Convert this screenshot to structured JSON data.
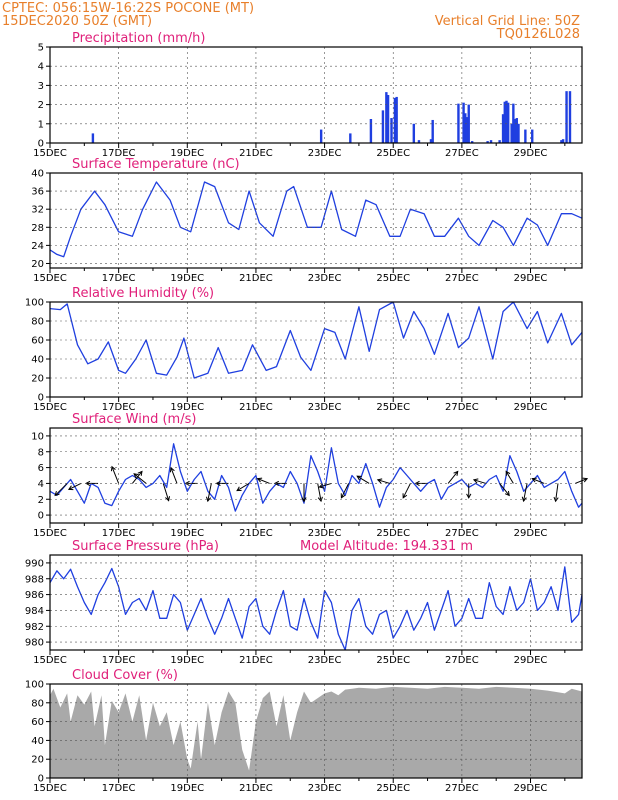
{
  "header": {
    "line1": "CPTEC:   056:15W-16:22S   POCONE (MT)",
    "line2": "15DEC2020 50Z (GMT)",
    "right1": "Vertical Grid Line: 50Z",
    "right2": "TQ0126L028"
  },
  "colors": {
    "header": "#e87f2a",
    "panel_title": "#e0207a",
    "series": "#1f3fe0",
    "cloud_fill": "#a9a9a9",
    "grid": "#555555",
    "arrow": "#000000"
  },
  "chart_data": [
    {
      "id": "precip",
      "type": "bar",
      "title": "Precipitation (mm/h)",
      "ylim": [
        0,
        5
      ],
      "yticks": [
        0,
        1,
        2,
        3,
        4,
        5
      ],
      "xlim": [
        0,
        15.5
      ],
      "xticks": [
        0,
        2,
        4,
        6,
        8,
        10,
        12,
        14
      ],
      "xticklabels": [
        "15DEC",
        "17DEC",
        "19DEC",
        "21DEC",
        "23DEC",
        "25DEC",
        "27DEC",
        "29DEC"
      ],
      "x": [
        1.25,
        7.9,
        8.75,
        9.35,
        9.7,
        9.8,
        9.85,
        9.95,
        10.05,
        10.1,
        10.6,
        10.75,
        11.1,
        11.15,
        11.9,
        12.05,
        12.1,
        12.15,
        12.2,
        12.3,
        12.75,
        12.85,
        13.1,
        13.2,
        13.25,
        13.3,
        13.35,
        13.45,
        13.5,
        13.55,
        13.6,
        13.65,
        13.85,
        14.05,
        14.9,
        14.95,
        15.05,
        15.15
      ],
      "values": [
        0.5,
        0.7,
        0.5,
        1.25,
        1.7,
        2.65,
        2.5,
        1.3,
        2.35,
        2.4,
        1.0,
        0.15,
        0.2,
        1.2,
        2.05,
        2.1,
        1.55,
        1.35,
        2.0,
        0.1,
        0.1,
        0.15,
        0.15,
        1.5,
        2.15,
        2.2,
        2.1,
        1.0,
        2.05,
        1.25,
        1.3,
        1.0,
        0.7,
        0.7,
        0.15,
        0.2,
        2.7,
        2.7
      ]
    },
    {
      "id": "temp",
      "type": "line",
      "title": "Surface Temperature (nC)",
      "ylim": [
        19,
        40
      ],
      "yticks": [
        20,
        24,
        28,
        32,
        36,
        40
      ],
      "xlim": [
        0,
        15.5
      ],
      "xticks": [
        0,
        2,
        4,
        6,
        8,
        10,
        12,
        14
      ],
      "xticklabels": [
        "15DEC",
        "17DEC",
        "19DEC",
        "21DEC",
        "23DEC",
        "25DEC",
        "27DEC",
        "29DEC"
      ],
      "x": [
        0,
        0.2,
        0.4,
        0.6,
        0.9,
        1.3,
        1.6,
        2.0,
        2.4,
        2.7,
        3.1,
        3.5,
        3.8,
        4.1,
        4.5,
        4.8,
        5.2,
        5.5,
        5.8,
        6.1,
        6.5,
        6.9,
        7.1,
        7.5,
        7.9,
        8.2,
        8.5,
        8.9,
        9.2,
        9.5,
        9.9,
        10.2,
        10.5,
        10.9,
        11.2,
        11.5,
        11.9,
        12.2,
        12.5,
        12.9,
        13.2,
        13.5,
        13.9,
        14.2,
        14.5,
        14.9,
        15.2,
        15.5
      ],
      "values": [
        23,
        22,
        21.5,
        26,
        32,
        36,
        33,
        27,
        26,
        32,
        38,
        34,
        28,
        27,
        38,
        37,
        29,
        27.5,
        36,
        29,
        26,
        36,
        37,
        28,
        28,
        36,
        27.5,
        26,
        34,
        33,
        26,
        26,
        32,
        31,
        26,
        26,
        30,
        26,
        24,
        29.5,
        28,
        24,
        30,
        28.5,
        24,
        31,
        31,
        30
      ]
    },
    {
      "id": "rh",
      "type": "line",
      "title": "Relative Humidity (%)",
      "ylim": [
        0,
        100
      ],
      "yticks": [
        0,
        20,
        40,
        60,
        80,
        100
      ],
      "xlim": [
        0,
        15.5
      ],
      "xticks": [
        0,
        2,
        4,
        6,
        8,
        10,
        12,
        14
      ],
      "xticklabels": [
        "15DEC",
        "17DEC",
        "19DEC",
        "21DEC",
        "23DEC",
        "25DEC",
        "27DEC",
        "29DEC"
      ],
      "x": [
        0,
        0.3,
        0.5,
        0.8,
        1.1,
        1.4,
        1.7,
        2.0,
        2.2,
        2.5,
        2.8,
        3.1,
        3.4,
        3.7,
        3.9,
        4.2,
        4.6,
        4.9,
        5.2,
        5.6,
        5.9,
        6.3,
        6.6,
        7.0,
        7.3,
        7.6,
        8.0,
        8.3,
        8.6,
        9.0,
        9.3,
        9.6,
        10.0,
        10.3,
        10.6,
        10.9,
        11.2,
        11.6,
        11.9,
        12.2,
        12.5,
        12.9,
        13.2,
        13.5,
        13.9,
        14.2,
        14.5,
        14.9,
        15.2,
        15.5
      ],
      "values": [
        93,
        92,
        98,
        55,
        35,
        40,
        58,
        28,
        25,
        40,
        60,
        25,
        23,
        42,
        62,
        20,
        25,
        52,
        25,
        28,
        55,
        28,
        32,
        70,
        42,
        28,
        72,
        68,
        40,
        95,
        48,
        92,
        100,
        62,
        90,
        72,
        45,
        88,
        52,
        62,
        95,
        40,
        90,
        100,
        72,
        90,
        57,
        88,
        55,
        68
      ]
    },
    {
      "id": "wind",
      "type": "line",
      "title": "Surface Wind (m/s)",
      "ylim": [
        -1,
        11
      ],
      "yticks": [
        0,
        2,
        4,
        6,
        8,
        10
      ],
      "xlim": [
        0,
        15.5
      ],
      "xticks": [
        0,
        2,
        4,
        6,
        8,
        10,
        12,
        14
      ],
      "xticklabels": [
        "15DEC",
        "17DEC",
        "19DEC",
        "21DEC",
        "23DEC",
        "25DEC",
        "27DEC",
        "29DEC"
      ],
      "x": [
        0,
        0.2,
        0.4,
        0.6,
        0.8,
        1.0,
        1.2,
        1.4,
        1.6,
        1.8,
        2.0,
        2.2,
        2.4,
        2.6,
        2.8,
        3.0,
        3.2,
        3.4,
        3.6,
        3.8,
        4.0,
        4.2,
        4.4,
        4.6,
        4.8,
        5.0,
        5.2,
        5.4,
        5.6,
        5.8,
        6.0,
        6.2,
        6.4,
        6.6,
        6.8,
        7.0,
        7.2,
        7.4,
        7.6,
        7.8,
        8.0,
        8.2,
        8.4,
        8.6,
        8.8,
        9.0,
        9.2,
        9.4,
        9.6,
        9.8,
        10.0,
        10.2,
        10.4,
        10.6,
        10.8,
        11.0,
        11.2,
        11.4,
        11.6,
        11.8,
        12.0,
        12.2,
        12.4,
        12.6,
        12.8,
        13.0,
        13.2,
        13.4,
        13.6,
        13.8,
        14.0,
        14.2,
        14.4,
        14.6,
        14.8,
        15.0,
        15.2,
        15.4,
        15.5
      ],
      "values": [
        3,
        2.5,
        3.5,
        4.5,
        3,
        1.5,
        4,
        3.5,
        1.5,
        1.2,
        3,
        4.5,
        5,
        4.5,
        3.5,
        4,
        5,
        3.5,
        9,
        5.5,
        3,
        4.5,
        5.5,
        3,
        2,
        5,
        3.5,
        0.5,
        2.5,
        4,
        5,
        1.5,
        3,
        4,
        3.5,
        5.5,
        4,
        1.5,
        7.5,
        5.5,
        3,
        8.5,
        4,
        2.5,
        5,
        4,
        6.5,
        4,
        1,
        3.5,
        4.5,
        6,
        5,
        4,
        3,
        4,
        4.5,
        2,
        3.5,
        4,
        4.5,
        3.5,
        4,
        3.5,
        4.5,
        5,
        3,
        7.5,
        5.5,
        3,
        4,
        5,
        3.5,
        4,
        4.5,
        5.5,
        3,
        1,
        1.5
      ],
      "barbs": [
        {
          "x": 0.5,
          "dx": -1,
          "dy": -1
        },
        {
          "x": 0.9,
          "dx": -1,
          "dy": -0.5
        },
        {
          "x": 1.4,
          "dx": -1,
          "dy": 0
        },
        {
          "x": 2.0,
          "dx": -0.6,
          "dy": 1.5
        },
        {
          "x": 2.4,
          "dx": 0.8,
          "dy": 1
        },
        {
          "x": 2.8,
          "dx": -1,
          "dy": 0.8
        },
        {
          "x": 3.3,
          "dx": 0.5,
          "dy": -1.6
        },
        {
          "x": 3.7,
          "dx": -0.5,
          "dy": 1.3
        },
        {
          "x": 4.3,
          "dx": -1,
          "dy": 0
        },
        {
          "x": 4.7,
          "dx": -0.3,
          "dy": -1.5
        },
        {
          "x": 5.2,
          "dx": -1,
          "dy": 0
        },
        {
          "x": 5.8,
          "dx": -1,
          "dy": -0.6
        },
        {
          "x": 6.4,
          "dx": -1,
          "dy": 0.4
        },
        {
          "x": 6.9,
          "dx": -1,
          "dy": 0
        },
        {
          "x": 7.4,
          "dx": 0,
          "dy": -2
        },
        {
          "x": 7.8,
          "dx": 0.3,
          "dy": -1.6
        },
        {
          "x": 8.2,
          "dx": -1,
          "dy": -0.3
        },
        {
          "x": 8.7,
          "dx": -0.6,
          "dy": -1.2
        },
        {
          "x": 9.3,
          "dx": -1,
          "dy": 0.6
        },
        {
          "x": 9.9,
          "dx": -1,
          "dy": 0.3
        },
        {
          "x": 10.5,
          "dx": -0.6,
          "dy": -1.2
        },
        {
          "x": 11.0,
          "dx": -1,
          "dy": 0
        },
        {
          "x": 11.6,
          "dx": 0.8,
          "dy": 1
        },
        {
          "x": 12.2,
          "dx": 0,
          "dy": -1.2
        },
        {
          "x": 12.7,
          "dx": -1,
          "dy": 0.3
        },
        {
          "x": 13.1,
          "dx": 0.8,
          "dy": -1
        },
        {
          "x": 13.5,
          "dx": -0.6,
          "dy": 1
        },
        {
          "x": 13.9,
          "dx": -0.3,
          "dy": -1.5
        },
        {
          "x": 14.4,
          "dx": -1,
          "dy": 0.4
        },
        {
          "x": 14.8,
          "dx": -0.2,
          "dy": -1.5
        },
        {
          "x": 15.3,
          "dx": 1,
          "dy": 0.4
        }
      ]
    },
    {
      "id": "pres",
      "type": "line",
      "title": "Surface Pressure (hPa)",
      "subtitle": "Model Altitude: 194.331 m",
      "ylim": [
        979,
        991
      ],
      "yticks": [
        980,
        982,
        984,
        986,
        988,
        990
      ],
      "xlim": [
        0,
        15.5
      ],
      "xticks": [
        0,
        2,
        4,
        6,
        8,
        10,
        12,
        14
      ],
      "xticklabels": [
        "15DEC",
        "17DEC",
        "19DEC",
        "21DEC",
        "23DEC",
        "25DEC",
        "27DEC",
        "29DEC"
      ],
      "x": [
        0,
        0.2,
        0.4,
        0.6,
        0.8,
        1.0,
        1.2,
        1.4,
        1.6,
        1.8,
        2.0,
        2.2,
        2.4,
        2.6,
        2.8,
        3.0,
        3.2,
        3.4,
        3.6,
        3.8,
        4.0,
        4.2,
        4.4,
        4.6,
        4.8,
        5.0,
        5.2,
        5.4,
        5.6,
        5.8,
        6.0,
        6.2,
        6.4,
        6.6,
        6.8,
        7.0,
        7.2,
        7.4,
        7.6,
        7.8,
        8.0,
        8.2,
        8.4,
        8.6,
        8.8,
        9.0,
        9.2,
        9.4,
        9.6,
        9.8,
        10.0,
        10.2,
        10.4,
        10.6,
        10.8,
        11.0,
        11.2,
        11.4,
        11.6,
        11.8,
        12.0,
        12.2,
        12.4,
        12.6,
        12.8,
        13.0,
        13.2,
        13.4,
        13.6,
        13.8,
        14.0,
        14.2,
        14.4,
        14.6,
        14.8,
        15.0,
        15.2,
        15.4,
        15.5
      ],
      "values": [
        987.5,
        989,
        988,
        989.2,
        987,
        985,
        983.5,
        986,
        987.5,
        989.3,
        987,
        983.5,
        985,
        985.5,
        984,
        986.5,
        983,
        983,
        986,
        985,
        981.5,
        983.5,
        985.5,
        983,
        981,
        983,
        985.5,
        983,
        980.5,
        984.5,
        985.5,
        982,
        981,
        984,
        986.5,
        982,
        981.5,
        985.5,
        982.5,
        980.5,
        986.5,
        985,
        981,
        979,
        984,
        985.5,
        982,
        981,
        983.5,
        984,
        980.5,
        982,
        984,
        981.5,
        983,
        985,
        981.5,
        984,
        986.5,
        982,
        983,
        985.5,
        983,
        983,
        987.5,
        984.5,
        983.5,
        987,
        984,
        985,
        988,
        984,
        985,
        987,
        984,
        989.5,
        982.5,
        983.5,
        986
      ]
    },
    {
      "id": "cloud",
      "type": "area",
      "title": "Cloud Cover (%)",
      "ylim": [
        0,
        100
      ],
      "yticks": [
        0,
        20,
        40,
        60,
        80,
        100
      ],
      "xlim": [
        0,
        15.5
      ],
      "xticks": [
        0,
        2,
        4,
        6,
        8,
        10,
        12,
        14
      ],
      "xticklabels": [
        "15DEC",
        "17DEC",
        "19DEC",
        "21DEC",
        "23DEC",
        "25DEC",
        "27DEC",
        "29DEC"
      ],
      "x": [
        0,
        0.1,
        0.3,
        0.5,
        0.6,
        0.8,
        1.0,
        1.2,
        1.3,
        1.5,
        1.6,
        1.8,
        2.0,
        2.2,
        2.4,
        2.6,
        2.8,
        3.0,
        3.2,
        3.4,
        3.6,
        3.8,
        4.0,
        4.1,
        4.3,
        4.4,
        4.6,
        4.8,
        5.0,
        5.2,
        5.4,
        5.6,
        5.8,
        6.0,
        6.2,
        6.4,
        6.6,
        6.8,
        7.0,
        7.2,
        7.4,
        7.6,
        7.8,
        8.0,
        8.2,
        8.4,
        8.6,
        8.8,
        9.0,
        9.5,
        10.0,
        10.5,
        11.0,
        11.5,
        12.0,
        12.5,
        13.0,
        13.5,
        14.0,
        14.5,
        15.0,
        15.2,
        15.5
      ],
      "values": [
        88,
        95,
        75,
        90,
        60,
        88,
        78,
        92,
        55,
        88,
        35,
        82,
        70,
        90,
        60,
        88,
        40,
        80,
        55,
        70,
        35,
        60,
        20,
        10,
        60,
        20,
        80,
        35,
        70,
        92,
        80,
        30,
        8,
        60,
        85,
        92,
        55,
        88,
        40,
        70,
        92,
        80,
        85,
        90,
        92,
        88,
        94,
        95,
        96,
        95,
        97,
        96,
        95,
        97,
        96,
        95,
        97,
        96,
        95,
        93,
        90,
        95,
        92
      ]
    }
  ]
}
